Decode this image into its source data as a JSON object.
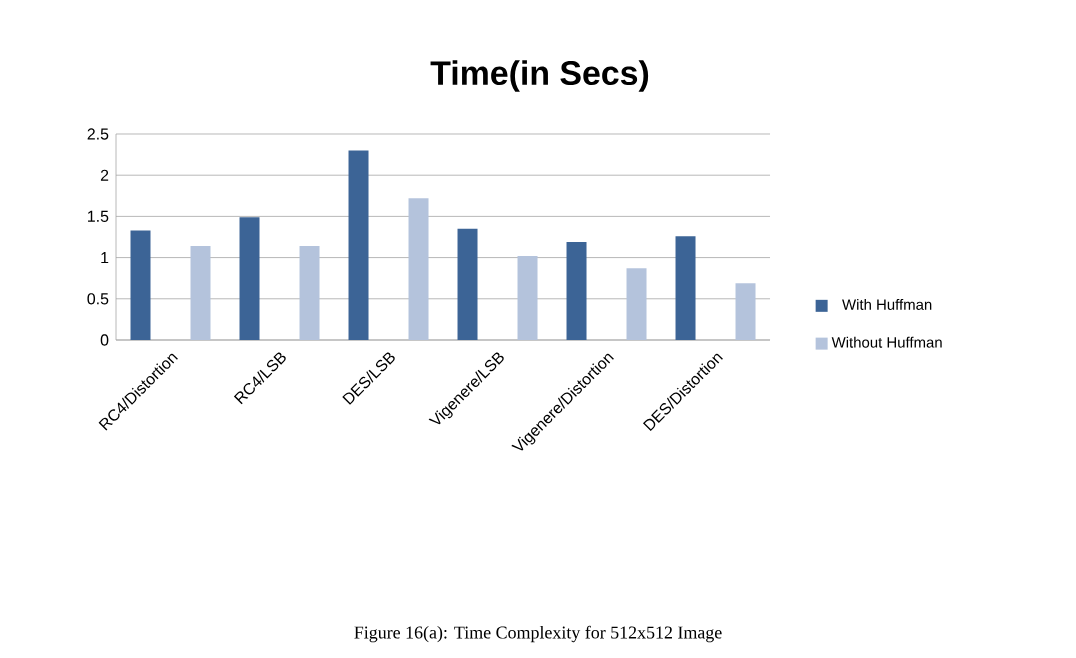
{
  "chart_data": {
    "type": "bar",
    "title": "Time(in Secs)",
    "categories": [
      "RC4/Distortion",
      "RC4/LSB",
      "DES/LSB",
      "Vigenere/LSB",
      "Vigenere/Distortion",
      "DES/Distortion"
    ],
    "series": [
      {
        "name": "With Huffman",
        "color": "#3c6496",
        "values": [
          1.33,
          1.49,
          2.3,
          1.35,
          1.19,
          1.26
        ]
      },
      {
        "name": "Without Huffman",
        "color": "#b4c3dc",
        "values": [
          1.14,
          1.14,
          1.72,
          1.02,
          0.87,
          0.69
        ]
      }
    ],
    "ylim": [
      0,
      2.5
    ],
    "yticks": [
      0,
      0.5,
      1,
      1.5,
      2,
      2.5
    ],
    "grid": "y",
    "legend": "right",
    "annotations": [
      "Figure 16(a): Time Complexity for 512x512 Image"
    ]
  }
}
